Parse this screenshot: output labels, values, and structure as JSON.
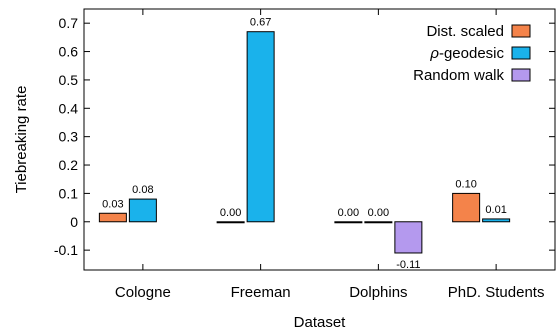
{
  "chart_data": {
    "type": "bar",
    "categories": [
      "Cologne",
      "Freeman",
      "Dolphins",
      "PhD. Students"
    ],
    "series": [
      {
        "name": "Dist. scaled",
        "color": "#f4834a",
        "values": [
          0.03,
          0.0,
          0.0,
          0.1
        ],
        "labels": [
          "0.03",
          "0.00",
          "0.00",
          "0.10"
        ]
      },
      {
        "name_prefix": "ρ",
        "name_suffix": "-geodesic",
        "color": "#1ab2eb",
        "values": [
          0.08,
          0.67,
          0.0,
          0.01
        ],
        "labels": [
          "0.08",
          "0.67",
          "0.00",
          "0.01"
        ]
      },
      {
        "name": "Random walk",
        "color": "#b499ee",
        "values": [
          null,
          null,
          -0.11,
          null
        ],
        "labels": [
          "",
          "",
          "-0.11",
          ""
        ]
      }
    ],
    "xlabel": "Dataset",
    "ylabel": "Tiebreaking rate",
    "ylim": [
      -0.17,
      0.75
    ],
    "yticks": [
      -0.1,
      0,
      0.1,
      0.2,
      0.3,
      0.4,
      0.5,
      0.6,
      0.7
    ],
    "ytick_labels": [
      "-0.1",
      "0",
      "0.1",
      "0.2",
      "0.3",
      "0.4",
      "0.5",
      "0.6",
      "0.7"
    ],
    "grid": false,
    "legend_position": "top-right"
  }
}
